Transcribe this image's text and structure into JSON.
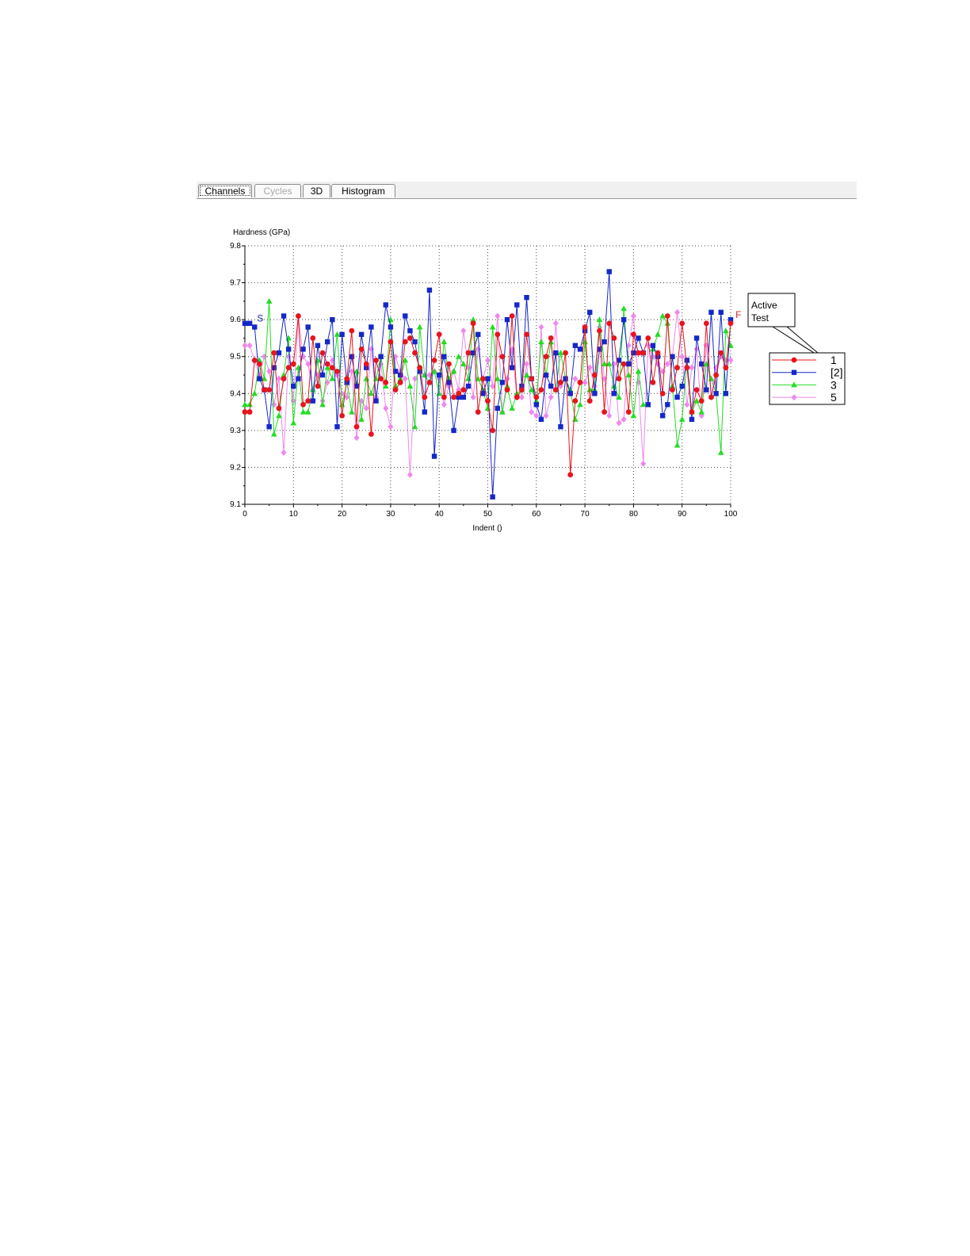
{
  "tabs": [
    {
      "label": "Channels",
      "active": true,
      "disabled": false
    },
    {
      "label": "Cycles",
      "active": false,
      "disabled": true
    },
    {
      "label": "3D",
      "active": false,
      "disabled": false
    },
    {
      "label": "Histogram",
      "active": false,
      "disabled": false
    }
  ],
  "legend_box_title": "Active\nTest",
  "chart_data": {
    "type": "line",
    "ylabel": "Hardness (GPa)",
    "xlabel": "Indent ()",
    "xlim": [
      0,
      100
    ],
    "ylim": [
      9.1,
      9.8
    ],
    "x_ticks": [
      0,
      10,
      20,
      30,
      40,
      50,
      60,
      70,
      80,
      90,
      100
    ],
    "y_ticks": [
      9.1,
      9.2,
      9.3,
      9.4,
      9.5,
      9.6,
      9.7,
      9.8
    ],
    "grid": true,
    "legend_position": "right",
    "annotations": [
      {
        "text": "S",
        "x": 2.5,
        "y": 9.595,
        "color": "#1a2fb0"
      },
      {
        "text": "F",
        "x": 101,
        "y": 9.605,
        "color": "#cc2a2a"
      }
    ],
    "series": [
      {
        "name": "1",
        "color": "#e8141c",
        "marker": "circle",
        "y": [
          9.35,
          9.35,
          9.49,
          9.48,
          9.41,
          9.41,
          9.51,
          9.36,
          9.44,
          9.47,
          9.48,
          9.61,
          9.37,
          9.38,
          9.55,
          9.42,
          9.51,
          9.48,
          9.47,
          9.46,
          9.34,
          9.44,
          9.57,
          9.31,
          9.52,
          9.48,
          9.29,
          9.49,
          9.44,
          9.43,
          9.54,
          9.41,
          9.43,
          9.54,
          9.55,
          9.51,
          9.47,
          9.39,
          9.43,
          9.49,
          9.56,
          9.39,
          9.48,
          9.39,
          9.4,
          9.41,
          9.51,
          9.59,
          9.35,
          9.44,
          9.38,
          9.3,
          9.56,
          9.5,
          9.41,
          9.61,
          9.39,
          9.41,
          9.56,
          9.44,
          9.39,
          9.41,
          9.5,
          9.55,
          9.41,
          9.43,
          9.51,
          9.18,
          9.38,
          9.43,
          9.58,
          9.38,
          9.45,
          9.57,
          9.35,
          9.59,
          9.55,
          9.44,
          9.48,
          9.35,
          9.56,
          9.51,
          9.51,
          9.55,
          9.43,
          9.51,
          9.4,
          9.61,
          9.41,
          9.47,
          9.59,
          9.47,
          9.35,
          9.41,
          9.38,
          9.59,
          9.39,
          9.45,
          9.51,
          9.47,
          9.59
        ]
      },
      {
        "name": "[2]",
        "color": "#1428c8",
        "marker": "square",
        "y": [
          9.59,
          9.59,
          9.58,
          9.44,
          9.41,
          9.31,
          9.47,
          9.51,
          9.61,
          9.52,
          9.42,
          9.44,
          9.52,
          9.58,
          9.38,
          9.53,
          9.45,
          9.54,
          9.6,
          9.31,
          9.56,
          9.43,
          9.5,
          9.42,
          9.56,
          9.47,
          9.58,
          9.38,
          9.5,
          9.64,
          9.58,
          9.46,
          9.45,
          9.61,
          9.57,
          9.54,
          9.46,
          9.35,
          9.68,
          9.23,
          9.45,
          9.5,
          9.43,
          9.3,
          9.39,
          9.39,
          9.42,
          9.51,
          9.56,
          9.4,
          9.44,
          9.12,
          9.36,
          9.43,
          9.6,
          9.47,
          9.64,
          9.42,
          9.66,
          9.44,
          9.37,
          9.33,
          9.45,
          9.42,
          9.51,
          9.31,
          9.44,
          9.4,
          9.53,
          9.52,
          9.57,
          9.62,
          9.4,
          9.52,
          9.54,
          9.73,
          9.4,
          9.49,
          9.6,
          9.48,
          9.51,
          9.55,
          9.51,
          9.37,
          9.53,
          9.5,
          9.34,
          9.37,
          9.5,
          9.39,
          9.42,
          9.49,
          9.33,
          9.55,
          9.48,
          9.41,
          9.62,
          9.4,
          9.62,
          9.4,
          9.6
        ]
      },
      {
        "name": "3",
        "color": "#22dd22",
        "marker": "triangle",
        "y": [
          9.37,
          9.37,
          9.4,
          9.49,
          9.44,
          9.65,
          9.29,
          9.34,
          9.45,
          9.55,
          9.32,
          9.47,
          9.35,
          9.35,
          9.41,
          9.49,
          9.37,
          9.47,
          9.44,
          9.56,
          9.37,
          9.43,
          9.35,
          9.46,
          9.33,
          9.44,
          9.4,
          9.44,
          9.5,
          9.42,
          9.6,
          9.42,
          9.44,
          9.49,
          9.42,
          9.31,
          9.58,
          9.45,
          9.43,
          9.46,
          9.4,
          9.54,
          9.44,
          9.46,
          9.5,
          9.48,
          9.44,
          9.6,
          9.44,
          9.41,
          9.36,
          9.58,
          9.44,
          9.35,
          9.42,
          9.36,
          9.4,
          9.41,
          9.45,
          9.41,
          9.38,
          9.54,
          9.45,
          9.54,
          9.41,
          9.51,
          9.44,
          9.41,
          9.33,
          9.37,
          9.54,
          9.41,
          9.41,
          9.6,
          9.48,
          9.48,
          9.42,
          9.39,
          9.63,
          9.45,
          9.34,
          9.46,
          9.37,
          9.37,
          9.52,
          9.56,
          9.61,
          9.59,
          9.42,
          9.26,
          9.33,
          9.49,
          9.35,
          9.38,
          9.35,
          9.48,
          9.44,
          9.4,
          9.24,
          9.57,
          9.53
        ]
      },
      {
        "name": "5",
        "color": "#ee88ee",
        "marker": "diamond",
        "y": [
          9.53,
          9.53,
          9.49,
          9.45,
          9.5,
          9.46,
          9.37,
          9.44,
          9.24,
          9.5,
          9.38,
          9.61,
          9.5,
          9.48,
          9.41,
          9.45,
          9.38,
          9.43,
          9.49,
          9.45,
          9.4,
          9.39,
          9.46,
          9.28,
          9.38,
          9.36,
          9.52,
          9.39,
          9.48,
          9.36,
          9.31,
          9.5,
          9.46,
          9.44,
          9.18,
          9.44,
          9.46,
          9.45,
          9.45,
          9.46,
          9.44,
          9.37,
          9.42,
          9.46,
          9.41,
          9.57,
          9.47,
          9.39,
          9.52,
          9.44,
          9.49,
          9.42,
          9.61,
          9.35,
          9.44,
          9.52,
          9.39,
          9.39,
          9.48,
          9.35,
          9.34,
          9.58,
          9.34,
          9.39,
          9.59,
          9.42,
          9.44,
          9.4,
          9.44,
          9.43,
          9.43,
          9.47,
          9.42,
          9.58,
          9.44,
          9.34,
          9.48,
          9.32,
          9.33,
          9.53,
          9.61,
          9.43,
          9.21,
          9.53,
          9.5,
          9.48,
          9.46,
          9.48,
          9.5,
          9.62,
          9.5,
          9.37,
          9.47,
          9.52,
          9.34,
          9.53,
          9.39,
          9.47,
          9.5,
          9.49,
          9.49
        ]
      }
    ]
  }
}
